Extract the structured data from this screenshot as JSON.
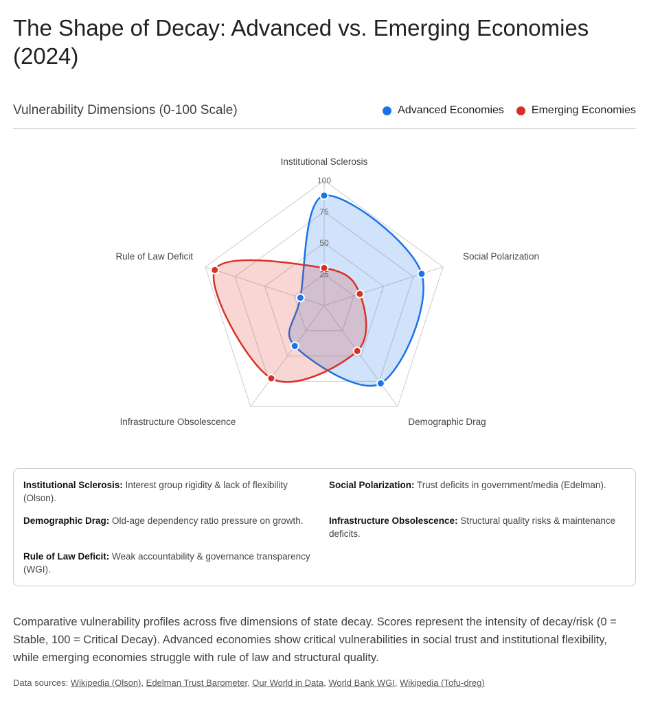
{
  "title": "The Shape of Decay: Advanced vs. Emerging Economies (2024)",
  "chart_data": {
    "type": "radar",
    "subtitle": "Vulnerability Dimensions (0-100 Scale)",
    "axes": [
      "Institutional Sclerosis",
      "Social Polarization",
      "Demographic Drag",
      "Infrastructure Obsolescence",
      "Rule of Law Deficit"
    ],
    "rlim": [
      0,
      100
    ],
    "ticks": [
      "25",
      "50",
      "75",
      "100"
    ],
    "tick_values": [
      25,
      50,
      75,
      100
    ],
    "legend_position": "top-right",
    "series": [
      {
        "name": "Advanced Economies",
        "color": "#1a73e8",
        "values": [
          88,
          82,
          77,
          40,
          20
        ]
      },
      {
        "name": "Emerging Economies",
        "color": "#d93025",
        "values": [
          30,
          30,
          45,
          72,
          92
        ]
      }
    ]
  },
  "definitions": [
    {
      "term": "Institutional Sclerosis:",
      "text": " Interest group rigidity & lack of flexibility (Olson)."
    },
    {
      "term": "Social Polarization:",
      "text": " Trust deficits in government/media (Edelman)."
    },
    {
      "term": "Demographic Drag:",
      "text": " Old-age dependency ratio pressure on growth."
    },
    {
      "term": "Infrastructure Obsolescence:",
      "text": " Structural quality risks & maintenance deficits."
    },
    {
      "term": "Rule of Law Deficit:",
      "text": " Weak accountability & governance transparency (WGI)."
    }
  ],
  "caption": "Comparative vulnerability profiles across five dimensions of state decay. Scores represent the intensity of decay/risk (0 = Stable, 100 = Critical Decay). Advanced economies show critical vulnerabilities in social trust and institutional flexibility, while emerging economies struggle with rule of law and structural quality.",
  "sources_label": "Data sources: ",
  "sources": [
    "Wikipedia (Olson)",
    "Edelman Trust Barometer",
    "Our World in Data",
    "World Bank WGI",
    "Wikipedia (Tofu-dreg)"
  ]
}
